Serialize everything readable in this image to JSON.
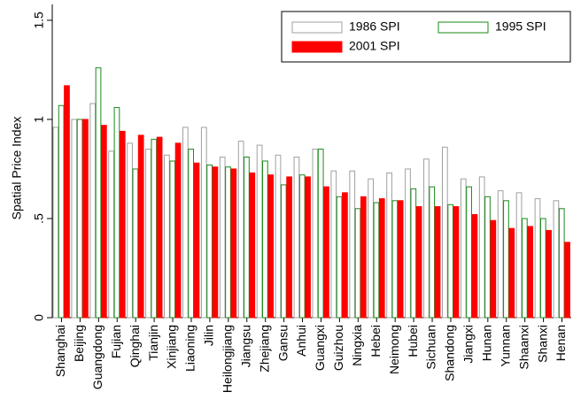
{
  "chart_data": {
    "type": "bar",
    "y_label": "Spatial Price Index",
    "categories": [
      "Shanghai",
      "Beijing",
      "Guangdong",
      "Fujian",
      "Qinghai",
      "Tianjin",
      "Xinjiang",
      "Liaoning",
      "Jilin",
      "Heilongjiang",
      "Jiangsu",
      "Zhejiang",
      "Gansu",
      "Anhui",
      "Guangxi",
      "Guizhou",
      "Ningxia",
      "Hebei",
      "Neimong",
      "Hubei",
      "Sichuan",
      "Shandong",
      "Jiangxi",
      "Hunan",
      "Yunnan",
      "Shaanxi",
      "Shanxi",
      "Henan"
    ],
    "series": [
      {
        "name": "1986 SPI",
        "color": "#a0a0a0",
        "fill": "#ffffff",
        "values": [
          0.96,
          1,
          1.08,
          0.84,
          0.88,
          0.85,
          0.82,
          0.96,
          0.96,
          0.81,
          0.89,
          0.87,
          0.82,
          0.81,
          0.85,
          0.74,
          0.74,
          0.7,
          0.73,
          0.75,
          0.8,
          0.86,
          0.7,
          0.71,
          0.64,
          0.63,
          0.6,
          0.59
        ]
      },
      {
        "name": "1995 SPI",
        "color": "#1a8a1a",
        "fill": "#ffffff",
        "values": [
          1.07,
          1,
          1.26,
          1.06,
          0.75,
          0.9,
          0.79,
          0.85,
          0.77,
          0.76,
          0.81,
          0.79,
          0.67,
          0.72,
          0.85,
          0.61,
          0.55,
          0.58,
          0.59,
          0.65,
          0.66,
          0.57,
          0.66,
          0.61,
          0.59,
          0.5,
          0.5,
          0.55
        ]
      },
      {
        "name": "2001 SPI",
        "color": "#ff0000",
        "fill": "#ff0000",
        "values": [
          1.17,
          1,
          0.97,
          0.94,
          0.92,
          0.91,
          0.88,
          0.78,
          0.76,
          0.75,
          0.73,
          0.72,
          0.71,
          0.71,
          0.66,
          0.63,
          0.61,
          0.6,
          0.59,
          0.56,
          0.56,
          0.56,
          0.52,
          0.49,
          0.45,
          0.46,
          0.44,
          0.38
        ]
      }
    ],
    "ylim": [
      0,
      1.58
    ],
    "yticks": [
      0,
      {
        "value": 0.5,
        "label": ".5"
      },
      1,
      1.5
    ],
    "legend": "top-right"
  }
}
